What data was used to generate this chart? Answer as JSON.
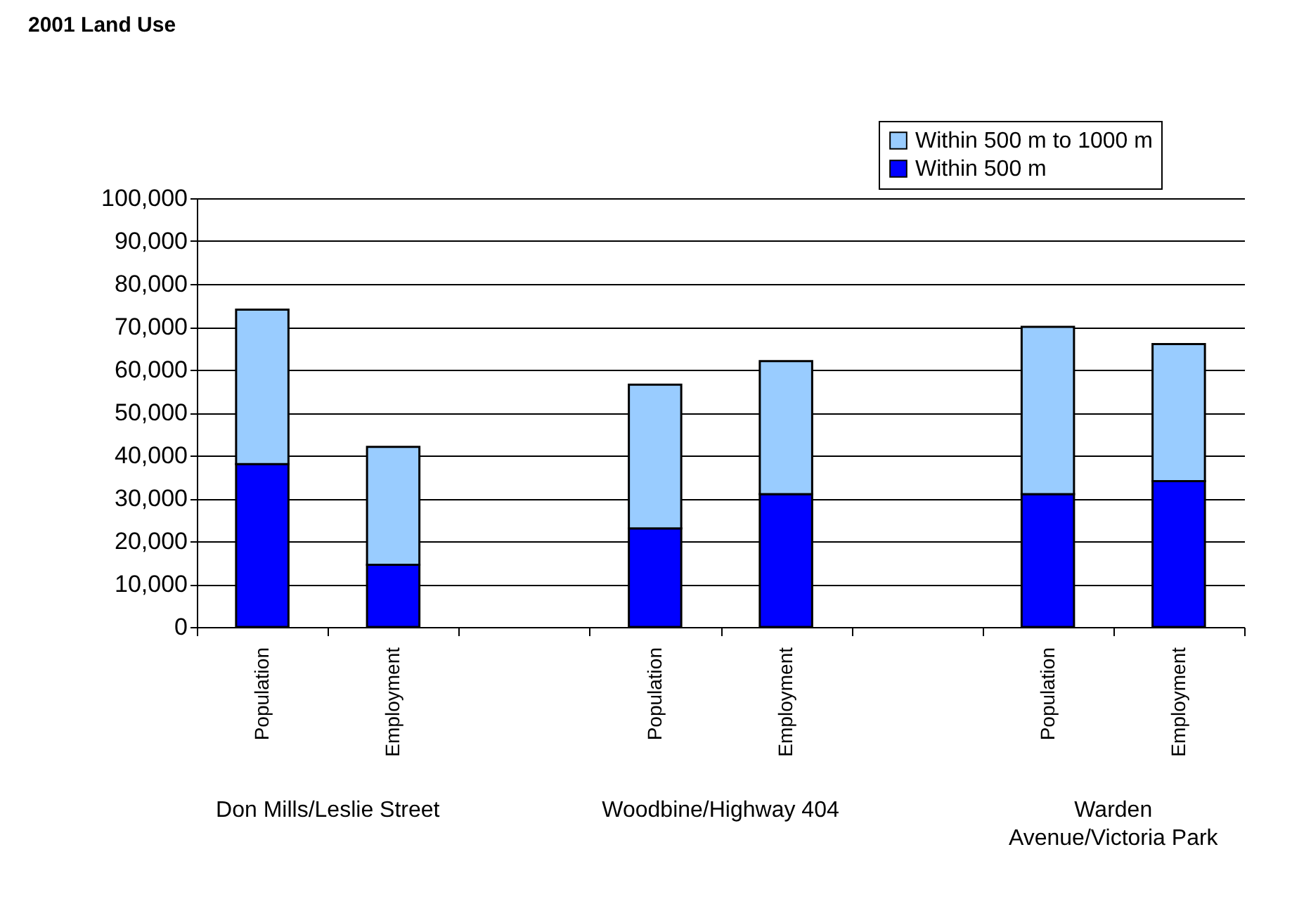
{
  "chart_data": {
    "type": "bar",
    "title": "2001 Land Use",
    "stacked": true,
    "categories": [
      "Population",
      "Employment",
      null,
      "Population",
      "Employment",
      null,
      "Population",
      "Employment"
    ],
    "series": [
      {
        "name": "Within 500 m",
        "color": "#0000ff",
        "values": [
          38000,
          14500,
          null,
          23000,
          31000,
          null,
          31000,
          34000
        ]
      },
      {
        "name": "Within 500 m to 1000 m",
        "color": "#99ccff",
        "values": [
          36000,
          27500,
          null,
          33500,
          31000,
          null,
          39000,
          32000
        ]
      }
    ],
    "ylim": [
      0,
      100000
    ],
    "yticks": [
      {
        "value": 0,
        "label": "0"
      },
      {
        "value": 10000,
        "label": "10,000"
      },
      {
        "value": 20000,
        "label": "20,000"
      },
      {
        "value": 30000,
        "label": "30,000"
      },
      {
        "value": 40000,
        "label": "40,000"
      },
      {
        "value": 50000,
        "label": "50,000"
      },
      {
        "value": 60000,
        "label": "60,000"
      },
      {
        "value": 70000,
        "label": "70,000"
      },
      {
        "value": 80000,
        "label": "80,000"
      },
      {
        "value": 90000,
        "label": "90,000"
      },
      {
        "value": 100000,
        "label": "100,000"
      }
    ],
    "grid": "y",
    "legend": "top right",
    "annotations": [
      "Don Mills/Leslie Street",
      "Woodbine/Highway 404",
      "Warden\nAvenue/Victoria Park"
    ]
  }
}
